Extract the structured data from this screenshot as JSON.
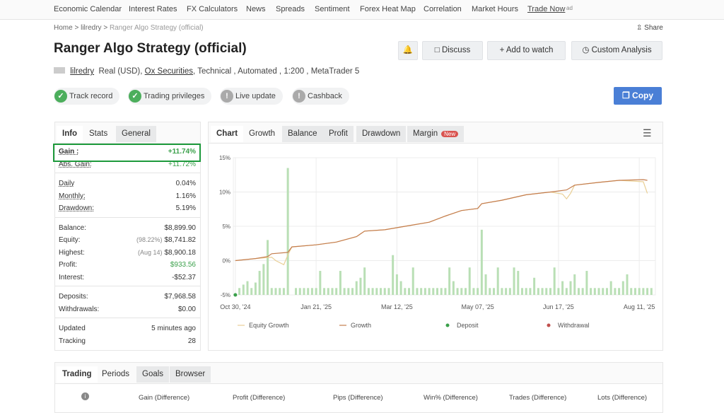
{
  "nav": {
    "items": [
      "Economic Calendar",
      "Interest Rates",
      "FX Calculators",
      "News",
      "Spreads",
      "Sentiment",
      "Forex Heat Map",
      "Correlation",
      "Market Hours",
      "Trade Now"
    ],
    "ad": "ad"
  },
  "breadcrumb": {
    "items": [
      "Home",
      "lilredry",
      "Ranger Algo Strategy (official)"
    ],
    "share": "Share"
  },
  "title": "Ranger Algo Strategy (official)",
  "buttons": [
    "Discuss",
    "Add to watch",
    "Custom Analysis"
  ],
  "meta": {
    "user": "lilredry",
    "account": "Real (USD),",
    "broker": "Ox Securities",
    "details": ", Technical , Automated , 1:200 , MetaTrader 5"
  },
  "badges": [
    "Track record",
    "Trading privileges",
    "Live update",
    "Cashback"
  ],
  "copy": "Copy",
  "info": {
    "tabs": [
      "Info",
      "Stats",
      "General"
    ],
    "groups": [
      [
        {
          "label": "Gain :",
          "value": "+11.74%"
        },
        {
          "label": "Abs. Gain:",
          "value": "+11.72%"
        }
      ],
      [
        {
          "label": "Daily",
          "value": "0.04%"
        },
        {
          "label": "Monthly:",
          "value": "1.16%"
        },
        {
          "label": "Drawdown:",
          "value": "5.19%"
        }
      ],
      [
        {
          "label": "Balance:",
          "value": "$8,899.90"
        },
        {
          "label": "Equity:",
          "note": "(98.22%)",
          "value": "$8,741.82"
        },
        {
          "label": "Highest:",
          "note": "(Aug 14)",
          "value": "$8,900.18"
        },
        {
          "label": "Profit:",
          "value": "$933.56"
        },
        {
          "label": "Interest:",
          "value": "-$52.37"
        }
      ],
      [
        {
          "label": "Deposits:",
          "value": "$7,968.58"
        },
        {
          "label": "Withdrawals:",
          "value": "$0.00"
        }
      ],
      [
        {
          "label": "Updated",
          "value": "5 minutes ago"
        },
        {
          "label": "Tracking",
          "value": "28"
        }
      ]
    ]
  },
  "chart_tabs": {
    "items": [
      "Chart",
      "Growth",
      "Balance",
      "Profit",
      "Drawdown",
      "Margin"
    ],
    "new": "New"
  },
  "chart_data": {
    "type": "line",
    "xlim": [
      -0.5,
      104
    ],
    "xticks": [
      {
        "value": 0,
        "label": "Oct 30, '24"
      },
      {
        "value": 20,
        "label": "Jan 21, '25"
      },
      {
        "value": 40,
        "label": "Mar 12, '25"
      },
      {
        "value": 60,
        "label": "May 07, '25"
      },
      {
        "value": 80,
        "label": "Jun 17, '25"
      },
      {
        "value": 100,
        "label": "Aug 11, '25"
      }
    ],
    "ylim": [
      -5,
      15
    ],
    "yticks": [
      {
        "value": -5,
        "label": "-5%"
      },
      {
        "value": 0,
        "label": "0%"
      },
      {
        "value": 5,
        "label": "5%"
      },
      {
        "value": 10,
        "label": "10%"
      },
      {
        "value": 15,
        "label": "15%"
      }
    ],
    "grid": true,
    "series": [
      {
        "name": "Equity Growth",
        "color": "#e9cf95",
        "x": [
          0,
          5,
          9,
          10,
          12,
          13,
          14,
          20,
          25,
          30,
          32,
          37,
          42,
          48,
          52,
          56,
          60,
          61,
          66,
          72,
          78,
          81,
          82,
          83,
          84,
          90,
          95,
          101,
          102
        ],
        "values": [
          0,
          0.3,
          0.5,
          0,
          -0.6,
          0.8,
          2,
          2.3,
          2.7,
          3.5,
          4.3,
          4.5,
          5,
          5.6,
          6.5,
          7.3,
          7.6,
          8.3,
          8.8,
          9.6,
          10,
          9.7,
          9,
          9.8,
          11,
          11.4,
          11.7,
          11.5,
          9.8
        ]
      },
      {
        "name": "Growth",
        "color": "#c47d4e",
        "x": [
          0,
          5,
          8,
          9,
          13,
          14,
          20,
          25,
          30,
          32,
          37,
          42,
          48,
          52,
          56,
          60,
          61,
          66,
          72,
          78,
          82,
          84,
          90,
          95,
          101,
          102
        ],
        "values": [
          0,
          0.3,
          0.6,
          1,
          1.2,
          2,
          2.3,
          2.7,
          3.5,
          4.3,
          4.5,
          5,
          5.6,
          6.5,
          7.3,
          7.6,
          8.3,
          8.8,
          9.6,
          10,
          10.3,
          11,
          11.4,
          11.7,
          11.8,
          11.7
        ]
      },
      {
        "name": "Deposit",
        "color": "#3aa04a",
        "x": [
          0
        ],
        "values": [
          -5
        ]
      },
      {
        "name": "Withdrawal",
        "color": "#c0504d",
        "x": [],
        "values": []
      }
    ],
    "bars": {
      "color": "#b9dfb5",
      "x": [
        1,
        2,
        3,
        4,
        5,
        6,
        7,
        8,
        9,
        10,
        11,
        12,
        13,
        15,
        16,
        17,
        18,
        19,
        20,
        21,
        22,
        23,
        24,
        25,
        26,
        27,
        28,
        29,
        30,
        31,
        32,
        33,
        34,
        35,
        36,
        37,
        38,
        39,
        40,
        41,
        42,
        43,
        44,
        45,
        46,
        47,
        48,
        49,
        50,
        51,
        52,
        53,
        54,
        55,
        56,
        57,
        58,
        59,
        60,
        61,
        62,
        63,
        64,
        65,
        66,
        67,
        68,
        69,
        70,
        71,
        72,
        73,
        74,
        75,
        76,
        77,
        78,
        79,
        80,
        81,
        82,
        83,
        84,
        85,
        86,
        87,
        88,
        89,
        90,
        91,
        92,
        93,
        94,
        95,
        96,
        97,
        98,
        99,
        100,
        101,
        102,
        103
      ],
      "values": [
        -4,
        -3.5,
        -3,
        -4,
        -3.2,
        -1.5,
        -0.5,
        3,
        -4,
        -4,
        -4,
        -4,
        13.5,
        -4,
        -4,
        -4,
        -4,
        -4,
        -4,
        -1.5,
        -4,
        -4,
        -4,
        -4,
        -1.5,
        -4,
        -4,
        -4,
        -3,
        -2.5,
        -1,
        -4,
        -4,
        -4,
        -4,
        -4,
        -4,
        0.8,
        -2,
        -3,
        -4,
        -4,
        -1,
        -4,
        -4,
        -4,
        -4,
        -4,
        -4,
        -4,
        -4,
        -1,
        -3,
        -4,
        -4,
        -4,
        -1,
        -4,
        -4,
        4.5,
        -2,
        -4,
        -4,
        -1,
        -4,
        -4,
        -4,
        -1,
        -1.5,
        -4,
        -4,
        -4,
        -2.5,
        -4,
        -4,
        -4,
        -4,
        -1,
        -4,
        -3,
        -4,
        -3,
        -2,
        -4,
        -4,
        -1.5,
        -4,
        -4,
        -4,
        -4,
        -4,
        -3,
        -4,
        -4,
        -3,
        -2,
        -4,
        -4,
        -4,
        -4,
        -4,
        -4
      ]
    },
    "legend_position": "bottom"
  },
  "trading": {
    "tabs": [
      "Trading",
      "Periods",
      "Goals",
      "Browser"
    ],
    "columns": [
      "Gain (Difference)",
      "Profit (Difference)",
      "Pips (Difference)",
      "Win% (Difference)",
      "Trades (Difference)",
      "Lots (Difference)"
    ]
  }
}
